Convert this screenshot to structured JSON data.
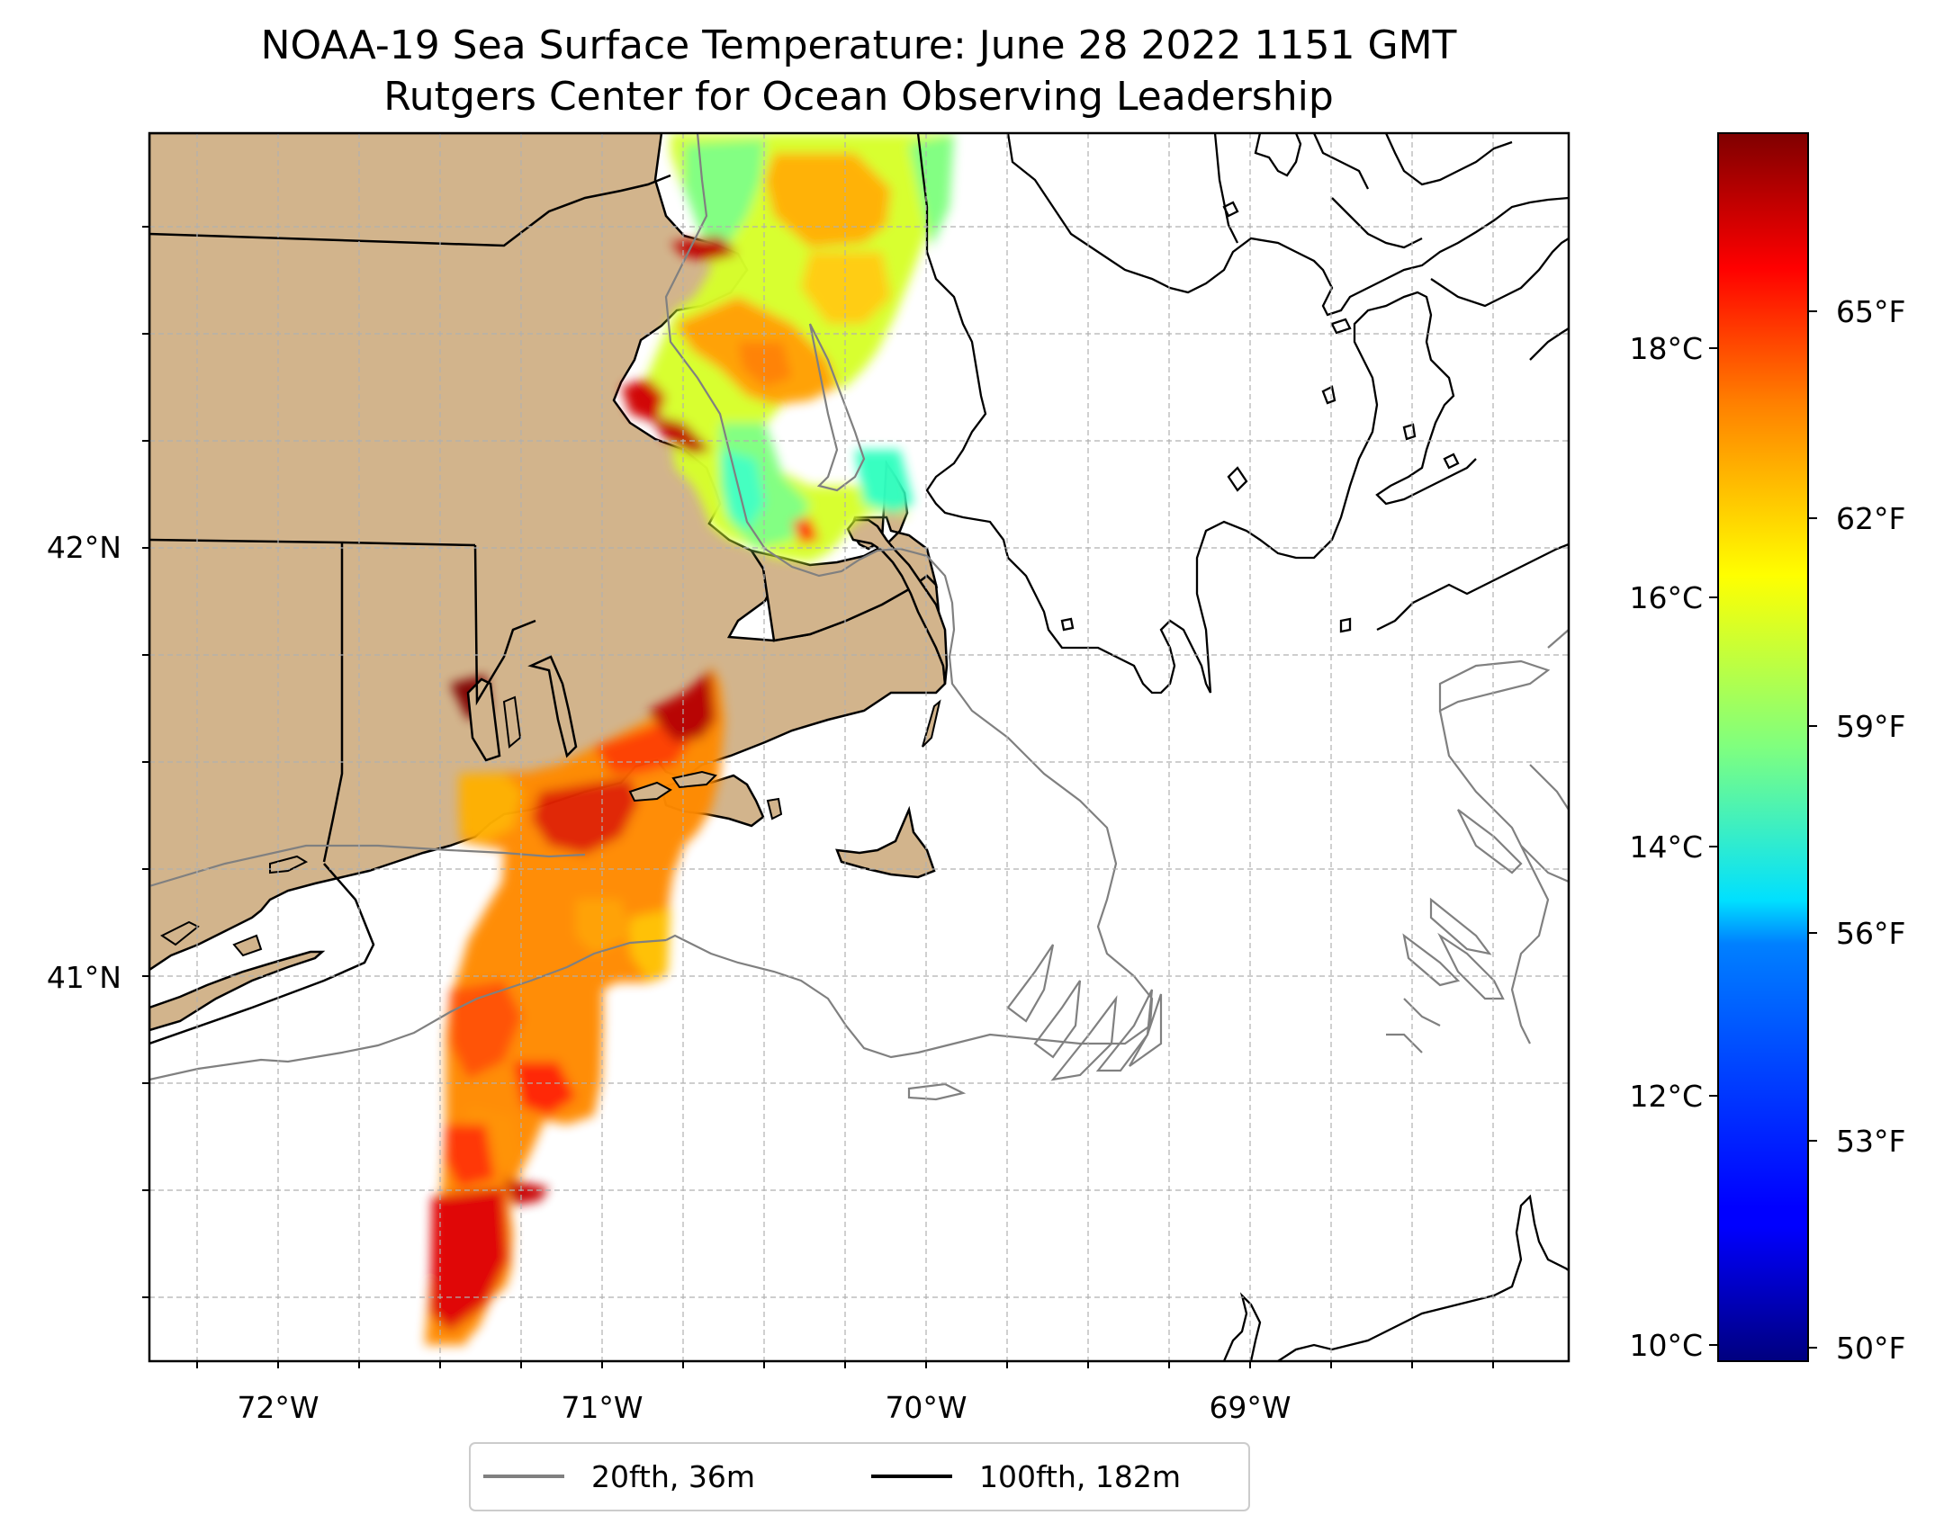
{
  "title_line1": "NOAA-19 Sea Surface Temperature: June 28 2022 1151 GMT",
  "title_line2": "Rutgers Center for Ocean Observing Leadership",
  "axes": {
    "lon_labels": [
      "72°W",
      "71°W",
      "70°W",
      "69°W"
    ],
    "lat_labels": [
      "42°N",
      "41°N"
    ]
  },
  "colorbar": {
    "celsius_labels": [
      "10°C",
      "12°C",
      "14°C",
      "16°C",
      "18°C"
    ],
    "fahrenheit_labels": [
      "50°F",
      "53°F",
      "56°F",
      "59°F",
      "62°F",
      "65°F"
    ],
    "colormap": "jet",
    "range_c": [
      9.8,
      19.8
    ]
  },
  "legend": {
    "items": [
      {
        "label": "20fth, 36m",
        "color": "#808080"
      },
      {
        "label": "100fth, 182m",
        "color": "#000000"
      }
    ]
  },
  "colors": {
    "land": "#d2b48c",
    "isobath_20fth": "#808080",
    "isobath_100fth": "#000000",
    "gridline": "#b0b0b0"
  }
}
